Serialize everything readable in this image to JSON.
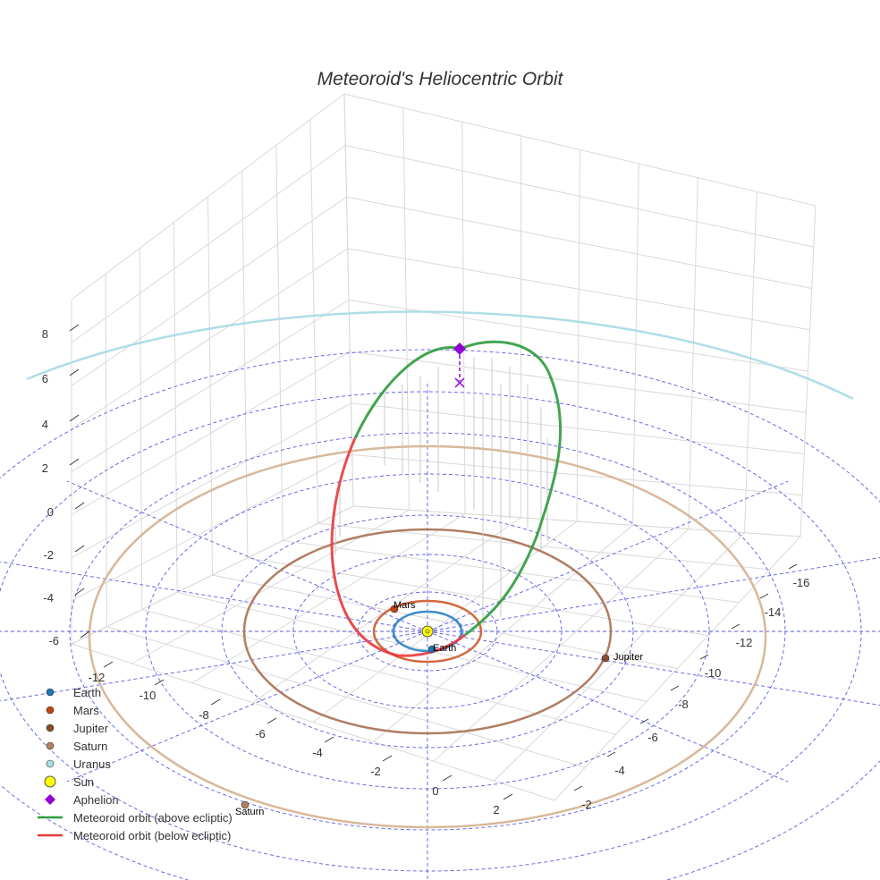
{
  "chart_data": {
    "type": "scatter3d",
    "title": "Meteoroid's Heliocentric Orbit",
    "axes": {
      "x_ticks": [
        "-12",
        "-10",
        "-8",
        "-6",
        "-4",
        "-2",
        "0",
        "2"
      ],
      "y_ticks": [
        "-16",
        "-14",
        "-12",
        "-10",
        "-8",
        "-6",
        "-4",
        "-2"
      ],
      "z_ticks": [
        "8",
        "6",
        "4",
        "2",
        "0",
        "-2",
        "-4",
        "-6"
      ],
      "grid": true
    },
    "planets": [
      {
        "name": "Earth",
        "orbit_radius_au": 1.0,
        "orbit_color": "#3b8ec8",
        "marker_color": "#1f77b4"
      },
      {
        "name": "Mars",
        "orbit_radius_au": 1.52,
        "orbit_color": "#d2693c",
        "marker_color": "#c1440e"
      },
      {
        "name": "Jupiter",
        "orbit_radius_au": 5.2,
        "orbit_color": "#b07e62",
        "marker_color": "#8b4d2f"
      },
      {
        "name": "Saturn",
        "orbit_radius_au": 9.54,
        "orbit_color": "#d8b89a",
        "marker_color": "#b08060"
      },
      {
        "name": "Uranus",
        "orbit_radius_au": 19.2,
        "orbit_color": "#b0dde6",
        "marker_color": "#7fc8d8"
      }
    ],
    "sun": {
      "name": "Sun",
      "color": "#ffff00"
    },
    "aphelion": {
      "name": "Aphelion",
      "color": "#9400d3"
    },
    "orbit_segments": [
      {
        "name": "Meteoroid orbit (above ecliptic)",
        "color": "#2e9b3c"
      },
      {
        "name": "Meteoroid orbit (below ecliptic)",
        "color": "#e8383d"
      }
    ],
    "legend": {
      "position": "bottom-left",
      "items": [
        {
          "label": "Earth",
          "kind": "dot",
          "color": "#1f77b4"
        },
        {
          "label": "Mars",
          "kind": "dot",
          "color": "#c1440e"
        },
        {
          "label": "Jupiter",
          "kind": "dot",
          "color": "#8b4d2f"
        },
        {
          "label": "Saturn",
          "kind": "dot",
          "color": "#b08060"
        },
        {
          "label": "Uranus",
          "kind": "dot",
          "color": "#a8dde6"
        },
        {
          "label": "Sun",
          "kind": "sun",
          "color": "#ffff00"
        },
        {
          "label": "Aphelion",
          "kind": "diamond",
          "color": "#9400d3"
        },
        {
          "label": "Meteoroid orbit (above ecliptic)",
          "kind": "line",
          "color": "#2e9b3c"
        },
        {
          "label": "Meteoroid orbit (below ecliptic)",
          "kind": "line",
          "color": "#e8383d"
        }
      ]
    }
  }
}
